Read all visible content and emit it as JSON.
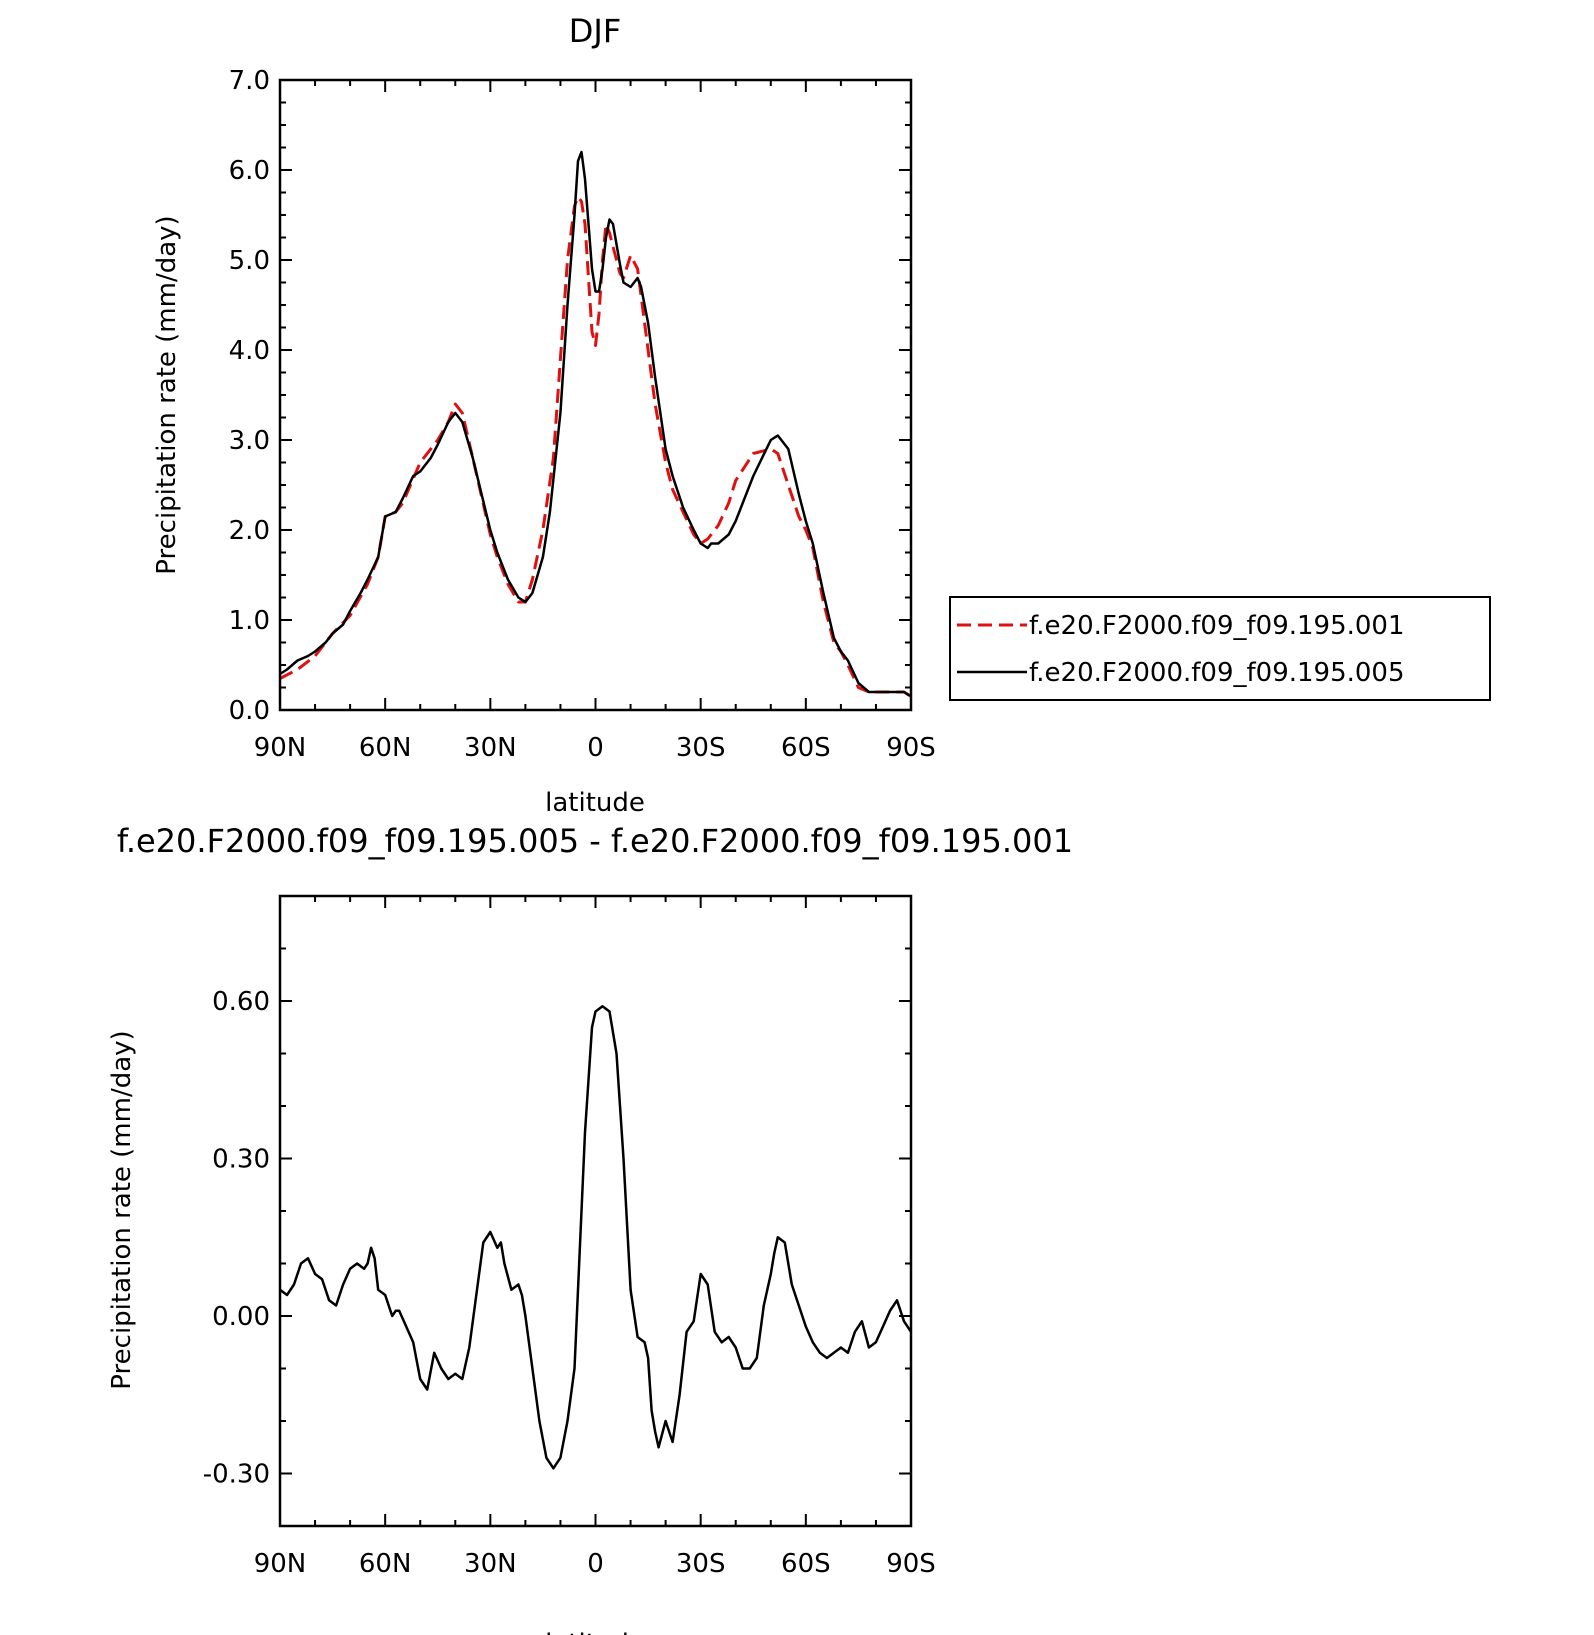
{
  "chart_data": [
    {
      "type": "line",
      "title": "DJF",
      "xlabel": "latitude",
      "ylabel": "Precipitation rate (mm/day)",
      "x_reversed": true,
      "xlim": [
        90,
        -90
      ],
      "ylim": [
        0,
        7
      ],
      "xticks": [
        90,
        60,
        30,
        0,
        -30,
        -60,
        -90
      ],
      "xtick_labels": [
        "90N",
        "60N",
        "30N",
        "0",
        "30S",
        "60S",
        "90S"
      ],
      "yticks": [
        0,
        1,
        2,
        3,
        4,
        5,
        6,
        7
      ],
      "ytick_labels": [
        "0.0",
        "1.0",
        "2.0",
        "3.0",
        "4.0",
        "5.0",
        "6.0",
        "7.0"
      ],
      "legend_position": "right",
      "grid": false,
      "series": [
        {
          "name": "f.e20.F2000.f09_f09.195.001",
          "color": "#e01010",
          "dash": "dashed",
          "x": [
            90,
            85,
            80,
            75,
            70,
            65,
            62,
            60,
            57,
            55,
            50,
            45,
            42,
            40,
            38,
            35,
            30,
            28,
            25,
            22,
            20,
            18,
            15,
            12,
            10,
            8,
            6,
            5,
            4,
            3,
            2,
            1,
            0,
            -1,
            -2,
            -3,
            -4,
            -5,
            -7,
            -8,
            -10,
            -12,
            -13,
            -15,
            -17,
            -20,
            -22,
            -25,
            -28,
            -30,
            -32,
            -33,
            -35,
            -38,
            -40,
            -45,
            -50,
            -52,
            -55,
            -58,
            -60,
            -62,
            -65,
            -68,
            -70,
            -72,
            -75,
            -78,
            -80,
            -82,
            -85,
            -88,
            -90
          ],
          "y": [
            0.35,
            0.45,
            0.6,
            0.85,
            1.05,
            1.4,
            1.7,
            2.15,
            2.2,
            2.3,
            2.75,
            3.0,
            3.2,
            3.4,
            3.3,
            2.8,
            1.95,
            1.7,
            1.4,
            1.2,
            1.2,
            1.45,
            2.0,
            2.8,
            3.9,
            5.0,
            5.6,
            5.7,
            5.65,
            5.4,
            4.8,
            4.2,
            4.05,
            4.4,
            5.0,
            5.4,
            5.3,
            5.15,
            4.85,
            4.8,
            5.05,
            4.9,
            4.6,
            4.0,
            3.4,
            2.75,
            2.45,
            2.2,
            1.95,
            1.85,
            1.9,
            1.95,
            2.05,
            2.3,
            2.55,
            2.85,
            2.9,
            2.85,
            2.5,
            2.15,
            2.0,
            1.8,
            1.2,
            0.75,
            0.65,
            0.5,
            0.25,
            0.2,
            0.2,
            0.2,
            0.2,
            0.2,
            0.15
          ]
        },
        {
          "name": "f.e20.F2000.f09_f09.195.005",
          "color": "#000000",
          "dash": "solid",
          "x": [
            90,
            88,
            85,
            82,
            80,
            77,
            75,
            72,
            70,
            67,
            65,
            62,
            60,
            57,
            55,
            52,
            50,
            47,
            45,
            42,
            40,
            38,
            35,
            30,
            28,
            25,
            22,
            20,
            18,
            15,
            13,
            10,
            8,
            6,
            5,
            4,
            3,
            2,
            1,
            0,
            -1,
            -2,
            -3,
            -4,
            -5,
            -7,
            -8,
            -10,
            -11,
            -12,
            -13,
            -15,
            -17,
            -20,
            -22,
            -25,
            -28,
            -30,
            -32,
            -33,
            -35,
            -38,
            -40,
            -45,
            -50,
            -52,
            -55,
            -58,
            -60,
            -62,
            -65,
            -68,
            -70,
            -72,
            -75,
            -78,
            -80,
            -82,
            -85,
            -88,
            -90
          ],
          "y": [
            0.4,
            0.45,
            0.55,
            0.6,
            0.65,
            0.75,
            0.85,
            0.95,
            1.1,
            1.3,
            1.45,
            1.7,
            2.15,
            2.2,
            2.35,
            2.6,
            2.65,
            2.8,
            2.95,
            3.2,
            3.3,
            3.2,
            2.8,
            2.0,
            1.75,
            1.45,
            1.25,
            1.2,
            1.3,
            1.7,
            2.2,
            3.3,
            4.5,
            5.5,
            6.1,
            6.2,
            5.9,
            5.4,
            4.9,
            4.65,
            4.65,
            4.9,
            5.25,
            5.45,
            5.4,
            4.95,
            4.75,
            4.7,
            4.75,
            4.8,
            4.7,
            4.3,
            3.7,
            2.9,
            2.6,
            2.25,
            2.0,
            1.85,
            1.8,
            1.85,
            1.85,
            1.95,
            2.1,
            2.6,
            3.0,
            3.05,
            2.9,
            2.4,
            2.1,
            1.85,
            1.3,
            0.8,
            0.65,
            0.55,
            0.3,
            0.2,
            0.2,
            0.2,
            0.2,
            0.2,
            0.15
          ]
        }
      ]
    },
    {
      "type": "line",
      "title": "f.e20.F2000.f09_f09.195.005 - f.e20.F2000.f09_f09.195.001",
      "xlabel": "latitude",
      "ylabel": "Precipitation rate (mm/day)",
      "x_reversed": true,
      "xlim": [
        90,
        -90
      ],
      "ylim": [
        -0.4,
        0.8
      ],
      "xticks": [
        90,
        60,
        30,
        0,
        -30,
        -60,
        -90
      ],
      "xtick_labels": [
        "90N",
        "60N",
        "30N",
        "0",
        "30S",
        "60S",
        "90S"
      ],
      "yticks": [
        -0.3,
        0,
        0.3,
        0.6
      ],
      "ytick_labels": [
        "-0.30",
        "0.00",
        "0.30",
        "0.60"
      ],
      "grid": false,
      "series": [
        {
          "name": "",
          "color": "#000000",
          "dash": "solid",
          "x": [
            90,
            88,
            86,
            84,
            82,
            80,
            78,
            76,
            74,
            72,
            70,
            68,
            66,
            65,
            64,
            63,
            62,
            60,
            58,
            57,
            56,
            54,
            52,
            50,
            48,
            46,
            44,
            42,
            40,
            38,
            36,
            34,
            32,
            30,
            28,
            27,
            26,
            24,
            22,
            21,
            20,
            18,
            16,
            14,
            12,
            10,
            8,
            6,
            5,
            4,
            3,
            2,
            1,
            0,
            -2,
            -4,
            -6,
            -8,
            -10,
            -12,
            -14,
            -15,
            -16,
            -17,
            -18,
            -20,
            -22,
            -24,
            -26,
            -28,
            -30,
            -32,
            -34,
            -36,
            -38,
            -40,
            -42,
            -44,
            -46,
            -48,
            -50,
            -51,
            -52,
            -54,
            -56,
            -58,
            -60,
            -62,
            -64,
            -66,
            -68,
            -70,
            -72,
            -74,
            -76,
            -78,
            -80,
            -82,
            -84,
            -86,
            -88,
            -90
          ],
          "y": [
            0.05,
            0.04,
            0.06,
            0.1,
            0.11,
            0.08,
            0.07,
            0.03,
            0.02,
            0.06,
            0.09,
            0.1,
            0.09,
            0.1,
            0.13,
            0.11,
            0.05,
            0.04,
            0.0,
            0.01,
            0.01,
            -0.02,
            -0.05,
            -0.12,
            -0.14,
            -0.07,
            -0.1,
            -0.12,
            -0.11,
            -0.12,
            -0.06,
            0.04,
            0.14,
            0.16,
            0.13,
            0.14,
            0.1,
            0.05,
            0.06,
            0.04,
            0.0,
            -0.1,
            -0.2,
            -0.27,
            -0.29,
            -0.27,
            -0.2,
            -0.1,
            0.05,
            0.2,
            0.35,
            0.45,
            0.55,
            0.58,
            0.59,
            0.58,
            0.5,
            0.3,
            0.05,
            -0.04,
            -0.05,
            -0.08,
            -0.18,
            -0.22,
            -0.25,
            -0.2,
            -0.24,
            -0.15,
            -0.03,
            -0.01,
            0.08,
            0.06,
            -0.03,
            -0.05,
            -0.04,
            -0.06,
            -0.1,
            -0.1,
            -0.08,
            0.02,
            0.08,
            0.12,
            0.15,
            0.14,
            0.06,
            0.02,
            -0.02,
            -0.05,
            -0.07,
            -0.08,
            -0.07,
            -0.06,
            -0.07,
            -0.03,
            -0.01,
            -0.06,
            -0.05,
            -0.02,
            0.01,
            0.03,
            -0.01,
            -0.03
          ],
          "x_filler_note": null
        }
      ]
    }
  ]
}
